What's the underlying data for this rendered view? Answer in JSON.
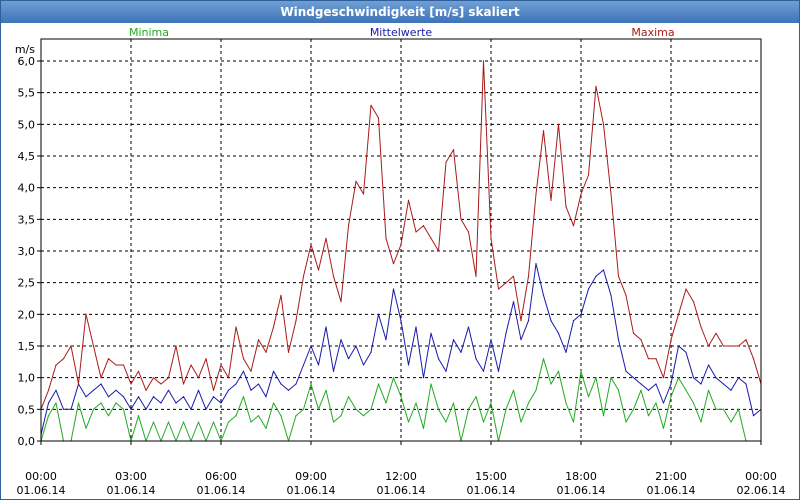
{
  "window": {
    "title": "Windgeschwindigkeit [m/s] skaliert"
  },
  "chart_data": {
    "type": "line",
    "title": "Windgeschwindigkeit [m/s] skaliert",
    "ylabel": "m/s",
    "xlabel": "",
    "ylim": [
      0,
      6.0
    ],
    "xlim": [
      0,
      24
    ],
    "grid": true,
    "legend": "top",
    "y_ticks": [
      "0,0",
      "0,5",
      "1,0",
      "1,5",
      "2,0",
      "2,5",
      "3,0",
      "3,5",
      "4,0",
      "4,5",
      "5,0",
      "5,5",
      "6,0"
    ],
    "x_ticks": [
      {
        "time": "00:00",
        "date": "01.06.14"
      },
      {
        "time": "03:00",
        "date": "01.06.14"
      },
      {
        "time": "06:00",
        "date": "01.06.14"
      },
      {
        "time": "09:00",
        "date": "01.06.14"
      },
      {
        "time": "12:00",
        "date": "01.06.14"
      },
      {
        "time": "15:00",
        "date": "01.06.14"
      },
      {
        "time": "18:00",
        "date": "01.06.14"
      },
      {
        "time": "21:00",
        "date": "01.06.14"
      },
      {
        "time": "00:00",
        "date": "02.06.14"
      }
    ],
    "x": [
      0,
      0.25,
      0.5,
      0.75,
      1,
      1.25,
      1.5,
      1.75,
      2,
      2.25,
      2.5,
      2.75,
      3,
      3.25,
      3.5,
      3.75,
      4,
      4.25,
      4.5,
      4.75,
      5,
      5.25,
      5.5,
      5.75,
      6,
      6.25,
      6.5,
      6.75,
      7,
      7.25,
      7.5,
      7.75,
      8,
      8.25,
      8.5,
      8.75,
      9,
      9.25,
      9.5,
      9.75,
      10,
      10.25,
      10.5,
      10.75,
      11,
      11.25,
      11.5,
      11.75,
      12,
      12.25,
      12.5,
      12.75,
      13,
      13.25,
      13.5,
      13.75,
      14,
      14.25,
      14.5,
      14.75,
      15,
      15.25,
      15.5,
      15.75,
      16,
      16.25,
      16.5,
      16.75,
      17,
      17.25,
      17.5,
      17.75,
      18,
      18.25,
      18.5,
      18.75,
      19,
      19.25,
      19.5,
      19.75,
      20,
      20.25,
      20.5,
      20.75,
      21,
      21.25,
      21.5,
      21.75,
      22,
      22.25,
      22.5,
      22.75,
      23,
      23.25,
      23.5,
      23.75,
      24
    ],
    "series": [
      {
        "name": "Minima",
        "color": "#22aa22",
        "values": [
          0.0,
          0.4,
          0.6,
          0.0,
          0.0,
          0.6,
          0.2,
          0.5,
          0.6,
          0.4,
          0.6,
          0.5,
          0.0,
          0.4,
          0.0,
          0.3,
          0.0,
          0.3,
          0.0,
          0.3,
          0.0,
          0.3,
          0.0,
          0.3,
          0.0,
          0.3,
          0.4,
          0.7,
          0.3,
          0.4,
          0.2,
          0.6,
          0.4,
          0.0,
          0.4,
          0.5,
          0.9,
          0.5,
          0.8,
          0.3,
          0.4,
          0.7,
          0.5,
          0.4,
          0.5,
          0.9,
          0.6,
          1.0,
          0.7,
          0.3,
          0.6,
          0.2,
          0.9,
          0.5,
          0.3,
          0.6,
          0.0,
          0.5,
          0.7,
          0.3,
          0.6,
          0.0,
          0.5,
          0.8,
          0.3,
          0.6,
          0.8,
          1.3,
          0.9,
          1.1,
          0.6,
          0.3,
          1.1,
          0.7,
          1.0,
          0.4,
          1.0,
          0.8,
          0.3,
          0.5,
          0.8,
          0.4,
          0.6,
          0.2,
          0.7,
          1.0,
          0.8,
          0.6,
          0.3,
          0.8,
          0.5,
          0.5,
          0.3,
          0.5,
          0.0,
          0.0,
          0.0
        ]
      },
      {
        "name": "Mittelwerte",
        "color": "#1a1aaa",
        "values": [
          0.1,
          0.6,
          0.8,
          0.5,
          0.5,
          0.9,
          0.7,
          0.8,
          0.9,
          0.7,
          0.8,
          0.7,
          0.5,
          0.7,
          0.5,
          0.7,
          0.6,
          0.8,
          0.6,
          0.7,
          0.5,
          0.8,
          0.5,
          0.7,
          0.6,
          0.8,
          0.9,
          1.1,
          0.8,
          0.9,
          0.7,
          1.1,
          0.9,
          0.8,
          0.9,
          1.2,
          1.5,
          1.2,
          1.8,
          1.1,
          1.6,
          1.3,
          1.5,
          1.2,
          1.4,
          2.0,
          1.6,
          2.4,
          1.9,
          1.2,
          1.8,
          1.0,
          1.7,
          1.3,
          1.1,
          1.6,
          1.4,
          1.8,
          1.3,
          1.1,
          1.6,
          1.1,
          1.7,
          2.2,
          1.6,
          1.9,
          2.8,
          2.3,
          1.9,
          1.7,
          1.4,
          1.9,
          2.0,
          2.4,
          2.6,
          2.7,
          2.3,
          1.6,
          1.1,
          1.0,
          0.9,
          0.8,
          0.9,
          0.6,
          0.9,
          1.5,
          1.4,
          1.0,
          0.9,
          1.2,
          1.0,
          0.9,
          0.8,
          1.0,
          0.9,
          0.4,
          0.5
        ]
      },
      {
        "name": "Maxima",
        "color": "#aa1a1a",
        "values": [
          0.5,
          0.8,
          1.2,
          1.3,
          1.5,
          0.9,
          2.0,
          1.5,
          1.0,
          1.3,
          1.2,
          1.2,
          0.9,
          1.1,
          0.8,
          1.0,
          0.9,
          1.0,
          1.5,
          0.9,
          1.2,
          1.0,
          1.3,
          0.8,
          1.2,
          1.0,
          1.8,
          1.3,
          1.1,
          1.6,
          1.4,
          1.8,
          2.3,
          1.4,
          1.9,
          2.6,
          3.1,
          2.7,
          3.2,
          2.6,
          2.2,
          3.4,
          4.1,
          3.9,
          5.3,
          5.1,
          3.2,
          2.8,
          3.1,
          3.8,
          3.3,
          3.4,
          3.2,
          3.0,
          4.4,
          4.6,
          3.5,
          3.3,
          2.6,
          6.0,
          3.2,
          2.4,
          2.5,
          2.6,
          1.9,
          2.6,
          3.9,
          4.9,
          3.8,
          5.0,
          3.7,
          3.4,
          3.9,
          4.2,
          5.6,
          5.0,
          3.9,
          2.6,
          2.3,
          1.7,
          1.6,
          1.3,
          1.3,
          1.0,
          1.6,
          2.0,
          2.4,
          2.2,
          1.8,
          1.5,
          1.7,
          1.5,
          1.5,
          1.5,
          1.6,
          1.3,
          0.9
        ]
      }
    ]
  }
}
